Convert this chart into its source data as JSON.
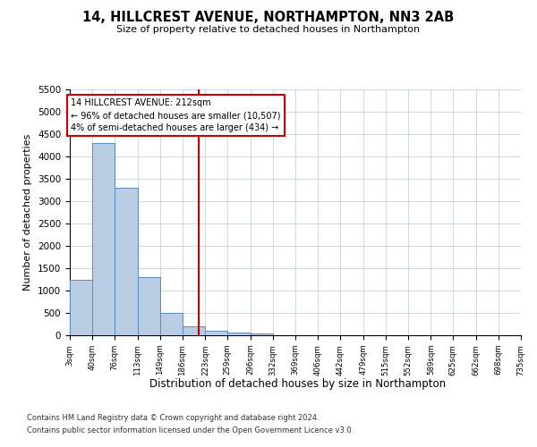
{
  "title": "14, HILLCREST AVENUE, NORTHAMPTON, NN3 2AB",
  "subtitle": "Size of property relative to detached houses in Northampton",
  "xlabel": "Distribution of detached houses by size in Northampton",
  "ylabel": "Number of detached properties",
  "footnote1": "Contains HM Land Registry data © Crown copyright and database right 2024.",
  "footnote2": "Contains public sector information licensed under the Open Government Licence v3.0.",
  "annotation_line1": "14 HILLCREST AVENUE: 212sqm",
  "annotation_line2": "← 96% of detached houses are smaller (10,507)",
  "annotation_line3": "4% of semi-detached houses are larger (434) →",
  "vline_x": 212,
  "bar_color": "#b8cce4",
  "bar_edgecolor": "#5a8abf",
  "vline_color": "#cc0000",
  "annotation_box_color": "#cc0000",
  "ylim": [
    0,
    5500
  ],
  "yticks": [
    0,
    500,
    1000,
    1500,
    2000,
    2500,
    3000,
    3500,
    4000,
    4500,
    5000,
    5500
  ],
  "bin_edges": [
    3,
    40,
    76,
    113,
    149,
    186,
    223,
    259,
    296,
    332,
    369,
    406,
    442,
    479,
    515,
    552,
    589,
    625,
    662,
    698,
    735
  ],
  "bin_counts": [
    1250,
    4300,
    3300,
    1300,
    500,
    200,
    100,
    60,
    50,
    0,
    0,
    0,
    0,
    0,
    0,
    0,
    0,
    0,
    0,
    0
  ],
  "background_color": "#ffffff",
  "grid_color": "#c8d0d8",
  "fig_width": 6.0,
  "fig_height": 5.0,
  "dpi": 100
}
